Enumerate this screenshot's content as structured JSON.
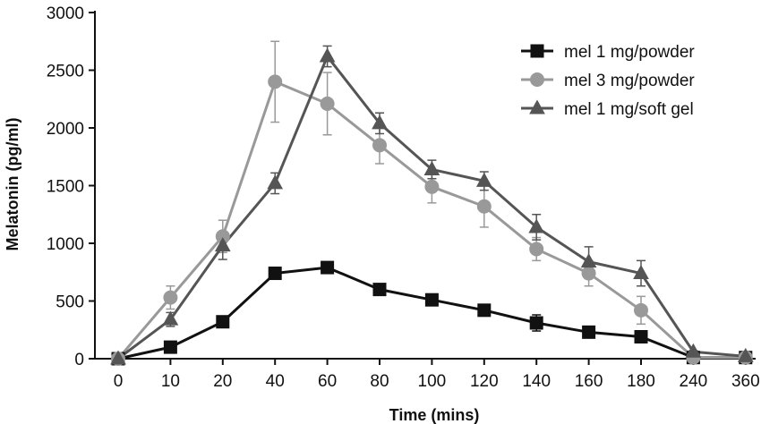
{
  "chart_data": {
    "type": "line",
    "xlabel": "Time (mins)",
    "ylabel": "Melatonin (pg/ml)",
    "categories": [
      "0",
      "10",
      "20",
      "40",
      "60",
      "80",
      "100",
      "120",
      "140",
      "160",
      "180",
      "240",
      "360"
    ],
    "yticks": [
      "0",
      "500",
      "1000",
      "1500",
      "2000",
      "2500",
      "3000"
    ],
    "ylim": [
      0,
      3000
    ],
    "grid": false,
    "legend_position": "top-right",
    "series": [
      {
        "name": "mel 1 mg/powder",
        "marker": "square",
        "color": "#111111",
        "values": [
          0,
          100,
          320,
          740,
          790,
          600,
          510,
          420,
          310,
          230,
          190,
          10,
          10
        ],
        "errors": [
          0,
          20,
          50,
          50,
          40,
          40,
          40,
          30,
          70,
          30,
          50,
          0,
          0
        ]
      },
      {
        "name": "mel 3 mg/powder",
        "marker": "circle",
        "color": "#999999",
        "values": [
          0,
          530,
          1060,
          2400,
          2210,
          1850,
          1490,
          1320,
          950,
          740,
          420,
          10,
          10
        ],
        "errors": [
          0,
          100,
          140,
          350,
          270,
          160,
          140,
          180,
          100,
          110,
          120,
          0,
          0
        ]
      },
      {
        "name": "mel 1 mg/soft gel",
        "marker": "triangle",
        "color": "#555555",
        "values": [
          0,
          340,
          980,
          1520,
          2620,
          2040,
          1640,
          1540,
          1140,
          840,
          740,
          60,
          20
        ],
        "errors": [
          0,
          60,
          120,
          90,
          90,
          90,
          80,
          80,
          110,
          130,
          110,
          10,
          0
        ]
      }
    ]
  }
}
